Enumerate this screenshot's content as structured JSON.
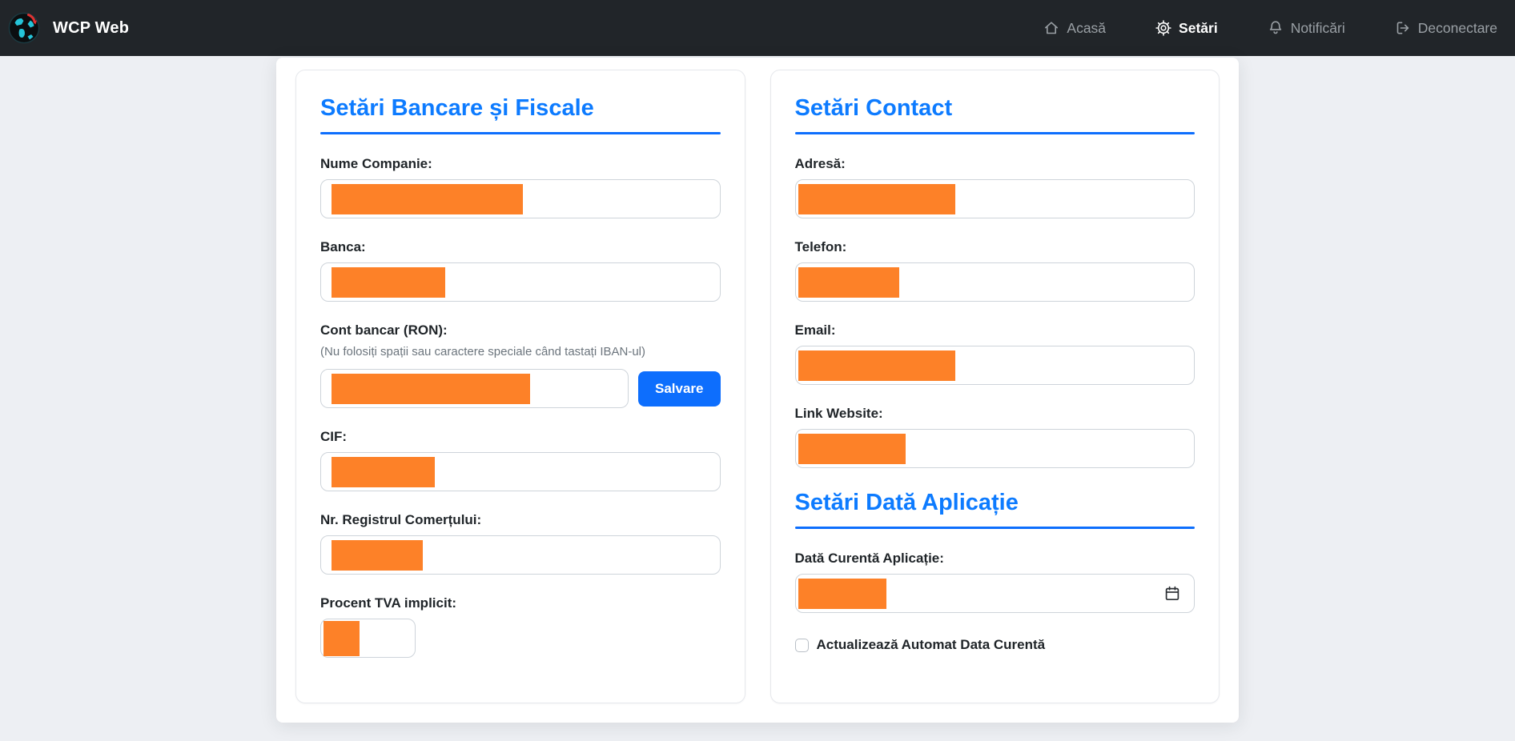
{
  "navbar": {
    "brand": "WCP Web",
    "items": [
      {
        "label": "Acasă",
        "icon": "home-icon",
        "active": false
      },
      {
        "label": "Setări",
        "icon": "gear-icon",
        "active": true
      },
      {
        "label": "Notificări",
        "icon": "bell-icon",
        "active": false
      },
      {
        "label": "Deconectare",
        "icon": "logout-icon",
        "active": false
      }
    ]
  },
  "banking_card": {
    "title": "Setări Bancare și Fiscale",
    "fields": {
      "company_name": {
        "label": "Nume Companie:",
        "value_redacted_width": 239
      },
      "bank": {
        "label": "Banca:",
        "value_redacted_width": 142
      },
      "iban": {
        "label_prefix": "Cont bancar (",
        "label_strong": "RON",
        "label_suffix": "):",
        "note": "(Nu folosiți spații sau caractere speciale când tastați IBAN-ul)",
        "value_redacted_width": 248,
        "save_button_label": "Salvare"
      },
      "cif": {
        "label": "CIF:",
        "value_redacted_width": 129
      },
      "trade_registry": {
        "label": "Nr. Registrul Comerțului:",
        "value_redacted_width": 114
      },
      "vat_percent": {
        "label": "Procent TVA implicit:",
        "value_redacted_width": 45
      }
    }
  },
  "contact_card": {
    "title": "Setări Contact",
    "fields": {
      "address": {
        "label": "Adresă:",
        "value_redacted_width": 196
      },
      "phone": {
        "label": "Telefon:",
        "value_redacted_width": 126
      },
      "email": {
        "label": "Email:",
        "value_redacted_width": 196
      },
      "website": {
        "label": "Link Website:",
        "value_redacted_width": 134
      }
    }
  },
  "app_date_section": {
    "title": "Setări Dată Aplicație",
    "date_field": {
      "label": "Dată Curentă Aplicație:",
      "value_redacted_width": 110
    },
    "auto_update_checkbox": {
      "label": "Actualizează Automat Data Curentă",
      "checked": false
    }
  },
  "colors": {
    "navbar_bg": "#212529",
    "page_bg": "#edeff3",
    "heading_blue": "#0d7bff",
    "rule_blue": "#0d6efd",
    "button_blue": "#0d6efd",
    "redaction_orange": "#fd8128",
    "input_border": "#ced4da",
    "muted_text": "#6c757d"
  }
}
